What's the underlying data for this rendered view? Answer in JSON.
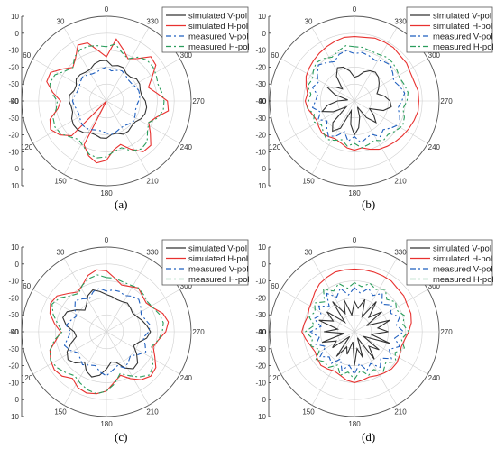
{
  "chart_data": [
    {
      "type": "polar-line",
      "caption": "(a)",
      "angle_labels": [
        "0",
        "30",
        "60",
        "90",
        "120",
        "150",
        "180",
        "210",
        "240",
        "270",
        "300",
        "330"
      ],
      "radial_ticks": [
        10,
        0,
        -10,
        -20,
        -30,
        -40,
        -30,
        -20,
        -10,
        0,
        10
      ],
      "rlim": [
        -40,
        10
      ],
      "legend": [
        "simulated V-pol",
        "simulated H-pol",
        "measured V-pol",
        "measured H-pol"
      ],
      "series": [
        {
          "name": "simulated V-pol",
          "color": "#333333",
          "dash": "solid",
          "values": [
            -16,
            -16,
            -17,
            -19,
            -19,
            -18,
            -18,
            -20,
            -20,
            -18,
            -18,
            -19,
            -19,
            -17,
            -16,
            -16,
            -17,
            -19,
            -19,
            -18,
            -18,
            -20,
            -20,
            -18,
            -18,
            -19,
            -19,
            -17,
            -16,
            -16,
            -17,
            -19,
            -19,
            -18,
            -18,
            -20,
            -20,
            -18,
            -18,
            -19
          ]
        },
        {
          "name": "simulated H-pol",
          "color": "#e8312f",
          "dash": "solid",
          "values": [
            -14,
            -10,
            -4,
            -3,
            -9,
            -12,
            -8,
            -3,
            -3,
            -8,
            -13,
            -11,
            -5,
            -3,
            -6,
            -11,
            -40,
            -11,
            -6,
            -3,
            -5,
            -11,
            -13,
            -8,
            -3,
            -3,
            -8,
            -12,
            -9,
            -3,
            -4,
            -10,
            -14,
            -10,
            -4,
            -3,
            -9,
            -12,
            -8,
            -3
          ]
        },
        {
          "name": "measured V-pol",
          "color": "#1f5fbf",
          "dash": "6,3,2,3",
          "values": [
            -20,
            -21,
            -22,
            -22,
            -21,
            -20,
            -21,
            -22,
            -22,
            -21,
            -20,
            -21,
            -22,
            -22,
            -21,
            -20,
            -20,
            -21,
            -22,
            -22,
            -21,
            -20,
            -21,
            -22,
            -22,
            -21,
            -20,
            -21,
            -22,
            -22,
            -21,
            -20,
            -20,
            -21,
            -22,
            -22,
            -21,
            -20,
            -21,
            -22
          ]
        },
        {
          "name": "measured H-pol",
          "color": "#2a9d5c",
          "dash": "6,3,2,3",
          "values": [
            -8,
            -7,
            -6,
            -6,
            -8,
            -12,
            -10,
            -6,
            -5,
            -7,
            -11,
            -10,
            -7,
            -6,
            -7,
            -10,
            -12,
            -10,
            -7,
            -6,
            -7,
            -10,
            -11,
            -7,
            -5,
            -6,
            -10,
            -12,
            -8,
            -6,
            -6,
            -7,
            -8,
            -7,
            -6,
            -6,
            -8,
            -12,
            -10,
            -6
          ]
        }
      ]
    },
    {
      "type": "polar-line",
      "caption": "(b)",
      "angle_labels": [
        "0",
        "30",
        "60",
        "90",
        "120",
        "150",
        "180",
        "210",
        "240",
        "270",
        "300",
        "330"
      ],
      "radial_ticks": [
        10,
        0,
        -10,
        -20,
        -30,
        -40,
        -30,
        -20,
        -10,
        0,
        10
      ],
      "rlim": [
        -40,
        10
      ],
      "legend": [
        "simulated V-pol",
        "simulated H-pol",
        "measured V-pol",
        "measured H-pol"
      ],
      "series": [
        {
          "name": "simulated V-pol",
          "color": "#333333",
          "dash": "solid",
          "values": [
            -26,
            -22,
            -19,
            -18,
            -22,
            -30,
            -26,
            -22,
            -28,
            -36,
            -30,
            -24,
            -20,
            -26,
            -34,
            -22,
            -18,
            -22,
            -34,
            -26,
            -20,
            -24,
            -30,
            -36,
            -28,
            -22,
            -26,
            -30,
            -22,
            -18,
            -19,
            -22,
            -26,
            -24,
            -22,
            -20,
            -19,
            -20,
            -22,
            -25
          ]
        },
        {
          "name": "simulated H-pol",
          "color": "#e8312f",
          "dash": "solid",
          "values": [
            -2,
            -2,
            -3,
            -4,
            -5,
            -6,
            -7,
            -8,
            -10,
            -12,
            -11,
            -12,
            -14,
            -15,
            -14,
            -13,
            -14,
            -15,
            -14,
            -12,
            -11,
            -12,
            -10,
            -8,
            -7,
            -6,
            -5,
            -4,
            -3,
            -2,
            -2,
            -2,
            -3,
            -3,
            -2,
            -2,
            -1,
            -1,
            -1,
            -2
          ]
        },
        {
          "name": "measured V-pol",
          "color": "#1f5fbf",
          "dash": "6,3,2,3",
          "values": [
            -12,
            -10,
            -11,
            -14,
            -12,
            -10,
            -13,
            -16,
            -14,
            -18,
            -17,
            -15,
            -19,
            -16,
            -20,
            -17,
            -14,
            -17,
            -21,
            -16,
            -19,
            -15,
            -17,
            -18,
            -14,
            -16,
            -13,
            -10,
            -12,
            -14,
            -12,
            -10,
            -12,
            -14,
            -12,
            -10,
            -11,
            -13,
            -12,
            -11
          ]
        },
        {
          "name": "measured H-pol",
          "color": "#2a9d5c",
          "dash": "6,3,2,3",
          "values": [
            -8,
            -7,
            -9,
            -11,
            -9,
            -8,
            -10,
            -12,
            -11,
            -14,
            -13,
            -12,
            -15,
            -13,
            -16,
            -14,
            -12,
            -14,
            -16,
            -13,
            -15,
            -12,
            -13,
            -14,
            -11,
            -12,
            -10,
            -8,
            -9,
            -11,
            -9,
            -8,
            -9,
            -10,
            -9,
            -8,
            -8,
            -9,
            -9,
            -8
          ]
        }
      ]
    },
    {
      "type": "polar-line",
      "caption": "(c)",
      "angle_labels": [
        "0",
        "30",
        "60",
        "90",
        "120",
        "150",
        "180",
        "210",
        "240",
        "270",
        "300",
        "330"
      ],
      "radial_ticks": [
        10,
        0,
        -10,
        -20,
        -30,
        -40,
        -30,
        -20,
        -10,
        0,
        10
      ],
      "rlim": [
        -40,
        10
      ],
      "legend": [
        "simulated V-pol",
        "simulated H-pol",
        "measured V-pol",
        "measured H-pol"
      ],
      "series": [
        {
          "name": "simulated V-pol",
          "color": "#333333",
          "dash": "solid",
          "values": [
            -18,
            -16,
            -14,
            -16,
            -20,
            -22,
            -18,
            -14,
            -13,
            -16,
            -21,
            -22,
            -18,
            -14,
            -12,
            -14,
            -18,
            -14,
            -12,
            -14,
            -18,
            -22,
            -21,
            -16,
            -13,
            -14,
            -18,
            -22,
            -20,
            -16,
            -14,
            -16,
            -18,
            -20,
            -21,
            -20,
            -19,
            -20,
            -20,
            -19
          ]
        },
        {
          "name": "simulated H-pol",
          "color": "#e8312f",
          "dash": "solid",
          "values": [
            -4,
            -3,
            -5,
            -9,
            -11,
            -8,
            -4,
            -3,
            -5,
            -9,
            -13,
            -10,
            -5,
            -3,
            -2,
            -3,
            -6,
            -3,
            -2,
            -3,
            -5,
            -10,
            -13,
            -9,
            -5,
            -3,
            -4,
            -8,
            -11,
            -9,
            -5,
            -3,
            -5,
            -9,
            -11,
            -10,
            -8,
            -10,
            -11,
            -8
          ]
        },
        {
          "name": "measured V-pol",
          "color": "#1f5fbf",
          "dash": "6,3,2,3",
          "values": [
            -16,
            -14,
            -15,
            -18,
            -16,
            -14,
            -17,
            -20,
            -18,
            -16,
            -19,
            -17,
            -14,
            -16,
            -19,
            -18,
            -16,
            -18,
            -19,
            -16,
            -14,
            -17,
            -19,
            -16,
            -18,
            -20,
            -17,
            -14,
            -16,
            -18,
            -15,
            -14,
            -16,
            -17,
            -15,
            -13,
            -14,
            -16,
            -15,
            -15
          ]
        },
        {
          "name": "measured H-pol",
          "color": "#2a9d5c",
          "dash": "6,3,2,3",
          "values": [
            -8,
            -6,
            -7,
            -9,
            -12,
            -10,
            -6,
            -4,
            -7,
            -11,
            -14,
            -9,
            -5,
            -3,
            -4,
            -6,
            -8,
            -6,
            -4,
            -3,
            -5,
            -9,
            -14,
            -11,
            -7,
            -4,
            -6,
            -10,
            -12,
            -9,
            -7,
            -6,
            -7,
            -9,
            -10,
            -9,
            -8,
            -9,
            -9,
            -8
          ]
        }
      ]
    },
    {
      "type": "polar-line",
      "caption": "(d)",
      "angle_labels": [
        "0",
        "30",
        "60",
        "90",
        "120",
        "150",
        "180",
        "210",
        "240",
        "270",
        "300",
        "330"
      ],
      "radial_ticks": [
        10,
        0,
        -10,
        -20,
        -30,
        -40,
        -30,
        -20,
        -10,
        0,
        10
      ],
      "rlim": [
        -40,
        10
      ],
      "legend": [
        "simulated V-pol",
        "simulated H-pol",
        "measured V-pol",
        "measured H-pol"
      ],
      "series": [
        {
          "name": "simulated V-pol",
          "color": "#333333",
          "dash": "solid",
          "values": [
            -22,
            -30,
            -20,
            -28,
            -18,
            -32,
            -20,
            -26,
            -18,
            -30,
            -22,
            -34,
            -20,
            -28,
            -24,
            -36,
            -22,
            -30,
            -26,
            -34,
            -20,
            -30,
            -24,
            -36,
            -20,
            -28,
            -22,
            -34,
            -18,
            -30,
            -20,
            -26,
            -18,
            -32,
            -20,
            -28,
            -18,
            -30,
            -20,
            -26
          ]
        },
        {
          "name": "simulated H-pol",
          "color": "#e8312f",
          "dash": "solid",
          "values": [
            -3,
            -3,
            -3,
            -4,
            -5,
            -7,
            -9,
            -10,
            -11,
            -10,
            -9,
            -11,
            -13,
            -14,
            -13,
            -12,
            -13,
            -14,
            -13,
            -11,
            -10,
            -11,
            -12,
            -11,
            -10,
            -9,
            -9,
            -10,
            -11,
            -10,
            -8,
            -6,
            -5,
            -5,
            -4,
            -4,
            -3,
            -3,
            -3,
            -3
          ]
        },
        {
          "name": "measured V-pol",
          "color": "#1f5fbf",
          "dash": "6,3,2,3",
          "values": [
            -14,
            -18,
            -13,
            -17,
            -12,
            -19,
            -14,
            -18,
            -15,
            -20,
            -14,
            -19,
            -16,
            -21,
            -15,
            -19,
            -17,
            -22,
            -16,
            -20,
            -15,
            -21,
            -16,
            -19,
            -14,
            -18,
            -13,
            -17,
            -12,
            -16,
            -11,
            -15,
            -12,
            -16,
            -13,
            -17,
            -12,
            -16,
            -13,
            -17
          ]
        },
        {
          "name": "measured H-pol",
          "color": "#2a9d5c",
          "dash": "6,3,2,3",
          "values": [
            -11,
            -14,
            -10,
            -13,
            -9,
            -15,
            -11,
            -14,
            -12,
            -16,
            -11,
            -15,
            -13,
            -17,
            -12,
            -15,
            -14,
            -18,
            -13,
            -16,
            -12,
            -17,
            -13,
            -15,
            -11,
            -14,
            -10,
            -13,
            -9,
            -12,
            -8,
            -11,
            -9,
            -12,
            -10,
            -13,
            -9,
            -12,
            -10,
            -13
          ]
        }
      ]
    }
  ]
}
